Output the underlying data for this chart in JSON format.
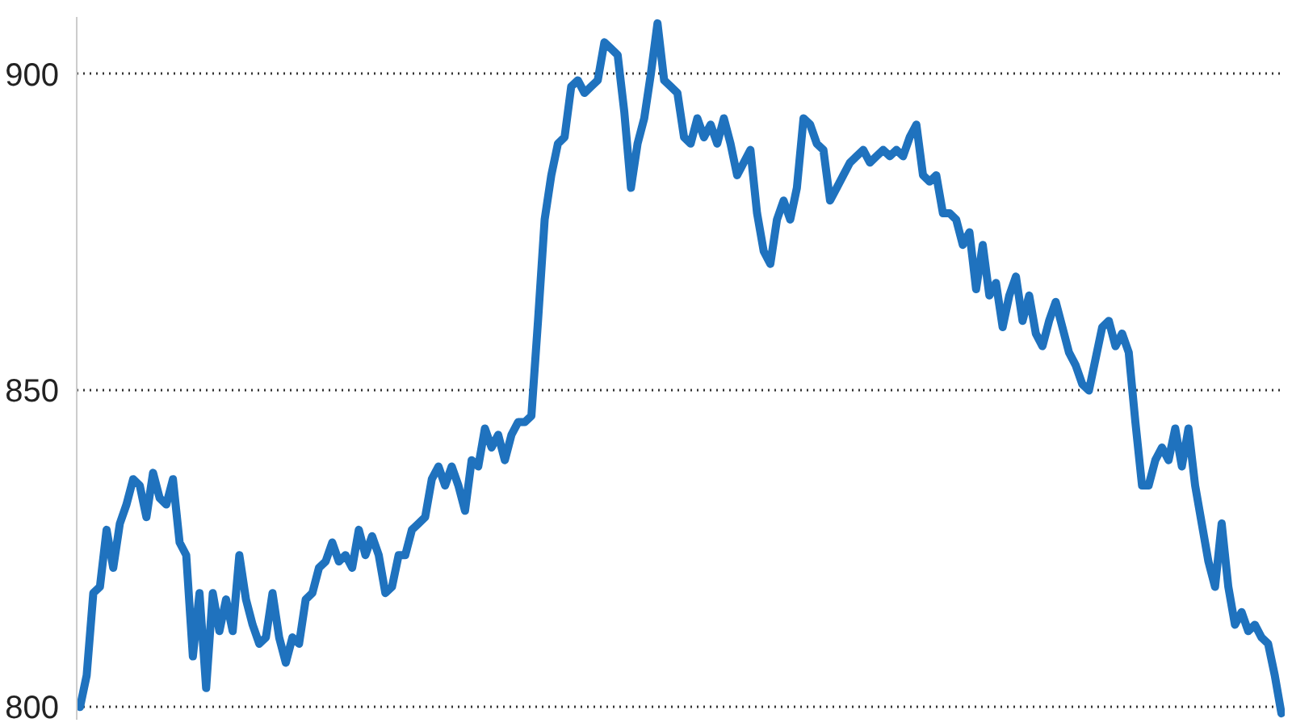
{
  "chart_data": {
    "type": "line",
    "categories": [
      null,
      null,
      null,
      null,
      null,
      null,
      null,
      null,
      null,
      null,
      null,
      null,
      null,
      null,
      null,
      null,
      null,
      null,
      null,
      null,
      null,
      null,
      null,
      null,
      null,
      null,
      null,
      null,
      null,
      null,
      null,
      null,
      null,
      null,
      null,
      null,
      null,
      null,
      null,
      null,
      null,
      null,
      null,
      null,
      null,
      null,
      null,
      null,
      null,
      null,
      null,
      null,
      null,
      null,
      null,
      null,
      null,
      null,
      null,
      null,
      null,
      null,
      null,
      null,
      null,
      null,
      null,
      null,
      null,
      null,
      null,
      null,
      null,
      null,
      null,
      null,
      null,
      null,
      null,
      null,
      null,
      null,
      null,
      null,
      null,
      null,
      null,
      null,
      null,
      null,
      null,
      null,
      null,
      null,
      null,
      null,
      null,
      null,
      null,
      null,
      null,
      null,
      null,
      null,
      null,
      null,
      null,
      null,
      null,
      null,
      null,
      null,
      null,
      null,
      null,
      null,
      null,
      null,
      null,
      null,
      null,
      null,
      null,
      null,
      null,
      null,
      null,
      null,
      null,
      null,
      null,
      null,
      null,
      null,
      null,
      null,
      null,
      null,
      null,
      null,
      null,
      null,
      null,
      null,
      null,
      null,
      null,
      null,
      null,
      null,
      null,
      null,
      null,
      null,
      null,
      null,
      null,
      null,
      null,
      null,
      null,
      null,
      null,
      null,
      null,
      null,
      null,
      null,
      null,
      null,
      null,
      null,
      null,
      null,
      null,
      null,
      null,
      null,
      null,
      null,
      null,
      null
    ],
    "series": [
      {
        "color": "#1f72be",
        "values": [
          800,
          805,
          818,
          819,
          828,
          822,
          829,
          832,
          836,
          835,
          830,
          837,
          833,
          832,
          836,
          826,
          824,
          808,
          818,
          803,
          818,
          812,
          817,
          812,
          824,
          817,
          813,
          810,
          811,
          818,
          811,
          807,
          811,
          810,
          817,
          818,
          822,
          823,
          826,
          823,
          824,
          822,
          828,
          824,
          827,
          824,
          818,
          819,
          824,
          824,
          828,
          829,
          830,
          836,
          838,
          835,
          838,
          835,
          831,
          839,
          838,
          844,
          841,
          843,
          839,
          843,
          845,
          845,
          846,
          861,
          877,
          884,
          889,
          890,
          898,
          899,
          897,
          898,
          899,
          905,
          904,
          903,
          894,
          882,
          889,
          893,
          900,
          908,
          899,
          898,
          897,
          890,
          889,
          893,
          890,
          892,
          889,
          893,
          889,
          884,
          886,
          888,
          878,
          872,
          870,
          877,
          880,
          877,
          882,
          893,
          892,
          889,
          888,
          880,
          882,
          884,
          886,
          887,
          888,
          886,
          887,
          888,
          887,
          888,
          887,
          890,
          892,
          884,
          883,
          884,
          878,
          878,
          877,
          873,
          875,
          866,
          873,
          865,
          867,
          860,
          865,
          868,
          861,
          865,
          859,
          857,
          861,
          864,
          860,
          856,
          854,
          851,
          850,
          855,
          860,
          861,
          857,
          859,
          856,
          845,
          835,
          835,
          839,
          841,
          839,
          844,
          838,
          844,
          835,
          829,
          823,
          819,
          829,
          819,
          813,
          815,
          812,
          813,
          811,
          810,
          805,
          799
        ]
      }
    ],
    "ylim": [
      798,
      909
    ],
    "yticks": [
      800,
      850,
      900
    ],
    "grid": "y",
    "tick_labels": "y",
    "line_style": "solid",
    "marker": "none"
  }
}
